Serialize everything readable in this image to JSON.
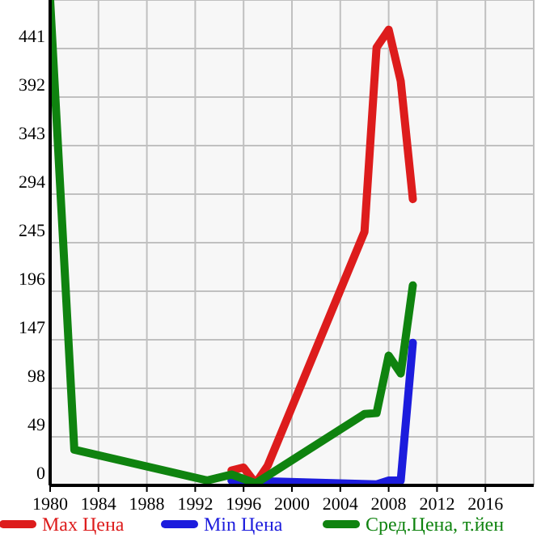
{
  "chart_data": {
    "type": "line",
    "xlim": [
      1980,
      2020
    ],
    "xticks": [
      1980,
      1984,
      1988,
      1992,
      1996,
      2000,
      2004,
      2008,
      2012,
      2016
    ],
    "ylim": [
      0,
      490
    ],
    "yticks": [
      0,
      49,
      98,
      147,
      196,
      245,
      294,
      343,
      392,
      441
    ],
    "grid": true,
    "legend": "bottom",
    "marker": "none",
    "line_style": "solid",
    "series": [
      {
        "name": "Max Цена",
        "color": "#dd1c1c",
        "x": [
          1995,
          1996,
          1997,
          1998,
          2006,
          2007,
          2008,
          2009,
          2010
        ],
        "values": [
          15,
          18,
          2,
          20,
          256,
          442,
          460,
          408,
          289
        ]
      },
      {
        "name": "Min Цена",
        "color": "#1c1cdd",
        "x": [
          1995,
          1997,
          1998,
          2007,
          2008,
          2009,
          2010
        ],
        "values": [
          5,
          0,
          4,
          1,
          5,
          5,
          144
        ]
      },
      {
        "name": "Сред.Цена, т.йен",
        "color": "#0f830f",
        "x": [
          1980,
          1982,
          1993,
          1995,
          1997,
          2006,
          2007,
          2008,
          2009,
          2010
        ],
        "values": [
          490,
          36,
          5,
          11,
          2,
          72,
          73,
          131,
          113,
          202
        ]
      }
    ]
  }
}
